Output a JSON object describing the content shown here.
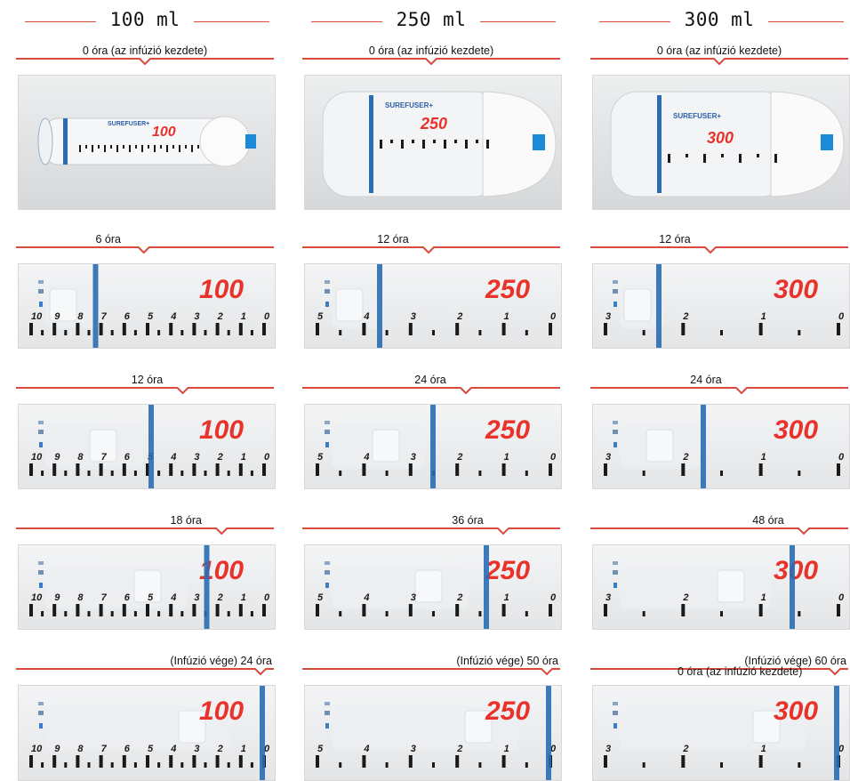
{
  "columns": [
    {
      "title": "100 ml",
      "volume_number": "100",
      "scale_labels": [
        "10",
        "9",
        "8",
        "7",
        "6",
        "5",
        "4",
        "3",
        "2",
        "1",
        "0"
      ],
      "stages": [
        {
          "label": "0 óra (az infúzió kezdete)",
          "progress": 0
        },
        {
          "label": "6 óra",
          "progress": 0.25
        },
        {
          "label": "12 óra",
          "progress": 0.5
        },
        {
          "label": "18 óra",
          "progress": 0.75
        },
        {
          "label": "(Infúzió vége) 24 óra",
          "progress": 1
        }
      ]
    },
    {
      "title": "250 ml",
      "volume_number": "250",
      "scale_labels": [
        "5",
        "4",
        "3",
        "2",
        "1",
        "0"
      ],
      "stages": [
        {
          "label": "0 óra (az infúzió kezdete)",
          "progress": 0
        },
        {
          "label": "12 óra",
          "progress": 0.24
        },
        {
          "label": "24 óra",
          "progress": 0.48
        },
        {
          "label": "36 óra",
          "progress": 0.72
        },
        {
          "label": "(Infúzió vége) 50 óra",
          "progress": 1
        }
      ]
    },
    {
      "title": "300 ml",
      "volume_number": "300",
      "scale_labels": [
        "3",
        "2",
        "1",
        "0"
      ],
      "stages": [
        {
          "label": "0 óra (az infúzió kezdete)",
          "progress": 0
        },
        {
          "label": "12 óra",
          "progress": 0.2
        },
        {
          "label": "24 óra",
          "progress": 0.4
        },
        {
          "label": "48 óra",
          "progress": 0.8
        },
        {
          "label": "(Infúzió vége) 60 óra",
          "progress": 1,
          "overlay_label": "0 óra (az infúzió kezdete)"
        }
      ]
    }
  ],
  "colors": {
    "accent": "#d94a3d",
    "band": "#2a6db5",
    "number": "#e8322a",
    "tick": "#1a1a1a",
    "brand": "#2a5fa8"
  },
  "brand_text": "SUREFUSER+"
}
